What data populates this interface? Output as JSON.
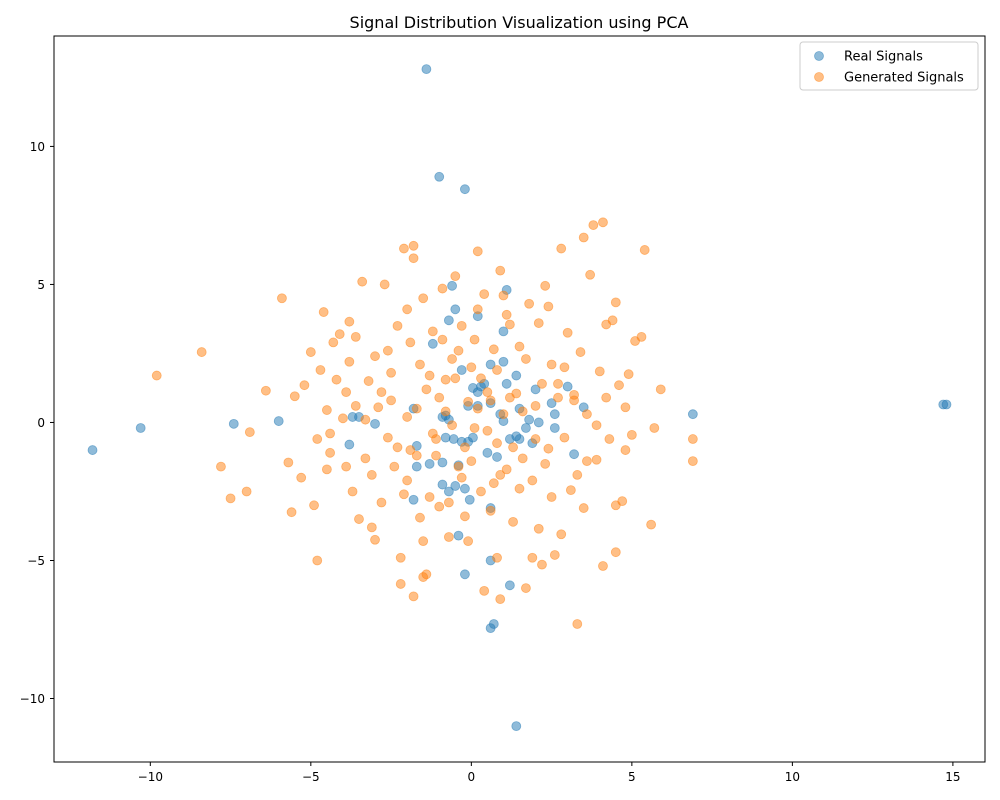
{
  "chart_data": {
    "type": "scatter",
    "title": "Signal Distribution Visualization using PCA",
    "xlabel": "",
    "ylabel": "",
    "xlim": [
      -13,
      16
    ],
    "ylim": [
      -12.3,
      14
    ],
    "xticks": [
      -10,
      -5,
      0,
      5,
      10,
      15
    ],
    "yticks": [
      -10,
      -5,
      0,
      5,
      10
    ],
    "grid": false,
    "legend_position": "top-right",
    "colors": {
      "real": "#1f77b4",
      "generated": "#ff7f0e"
    },
    "series": [
      {
        "name": "Real Signals",
        "color": "#1f77b4",
        "points": [
          [
            -1.4,
            12.8
          ],
          [
            -1.0,
            8.9
          ],
          [
            -0.2,
            8.45
          ],
          [
            -11.8,
            -1.0
          ],
          [
            -10.3,
            -0.2
          ],
          [
            -7.4,
            -0.05
          ],
          [
            -6.0,
            0.05
          ],
          [
            14.7,
            0.65
          ],
          [
            14.8,
            0.65
          ],
          [
            6.9,
            0.3
          ],
          [
            1.4,
            -11.0
          ],
          [
            0.7,
            -7.3
          ],
          [
            0.6,
            -7.45
          ],
          [
            1.2,
            -5.9
          ],
          [
            -0.2,
            -5.5
          ],
          [
            0.6,
            -5.0
          ],
          [
            -0.4,
            -4.1
          ],
          [
            -1.8,
            -2.8
          ],
          [
            -0.7,
            -2.5
          ],
          [
            -0.2,
            -2.4
          ],
          [
            -0.05,
            -2.8
          ],
          [
            0.6,
            -3.1
          ],
          [
            -0.5,
            -2.3
          ],
          [
            -0.9,
            -2.25
          ],
          [
            -3.5,
            0.2
          ],
          [
            -3.7,
            0.2
          ],
          [
            -3.0,
            -0.05
          ],
          [
            -3.8,
            -0.8
          ],
          [
            -1.7,
            -0.85
          ],
          [
            -1.3,
            -1.5
          ],
          [
            -0.9,
            -1.45
          ],
          [
            -0.4,
            -1.55
          ],
          [
            -0.55,
            -0.6
          ],
          [
            -0.3,
            -0.7
          ],
          [
            -0.8,
            -0.55
          ],
          [
            -1.7,
            -1.6
          ],
          [
            -0.7,
            0.1
          ],
          [
            -0.8,
            0.25
          ],
          [
            -0.9,
            0.2
          ],
          [
            -1.8,
            0.5
          ],
          [
            -1.2,
            2.85
          ],
          [
            -0.7,
            3.7
          ],
          [
            -0.5,
            4.1
          ],
          [
            -0.6,
            4.95
          ],
          [
            0.2,
            3.85
          ],
          [
            1.1,
            4.8
          ],
          [
            1.0,
            3.3
          ],
          [
            0.6,
            2.1
          ],
          [
            1.0,
            2.2
          ],
          [
            0.4,
            1.4
          ],
          [
            1.1,
            1.4
          ],
          [
            0.2,
            1.1
          ],
          [
            0.05,
            1.25
          ],
          [
            0.9,
            0.3
          ],
          [
            1.2,
            -0.6
          ],
          [
            1.5,
            -0.6
          ],
          [
            1.4,
            -0.5
          ],
          [
            2.1,
            0.0
          ],
          [
            1.7,
            -0.2
          ],
          [
            2.6,
            -0.2
          ],
          [
            2.6,
            0.3
          ],
          [
            1.9,
            -0.75
          ],
          [
            1.4,
            1.7
          ],
          [
            0.8,
            -1.25
          ],
          [
            0.5,
            -1.1
          ],
          [
            -0.1,
            -0.7
          ],
          [
            0.05,
            -0.55
          ],
          [
            0.3,
            1.3
          ],
          [
            1.8,
            0.1
          ],
          [
            2.0,
            1.2
          ],
          [
            2.5,
            0.7
          ],
          [
            3.0,
            1.3
          ],
          [
            3.2,
            -1.15
          ],
          [
            3.5,
            0.55
          ],
          [
            -0.3,
            1.9
          ],
          [
            -0.1,
            0.6
          ],
          [
            0.2,
            0.6
          ],
          [
            1.5,
            0.5
          ],
          [
            1.0,
            0.05
          ],
          [
            0.6,
            0.7
          ]
        ]
      },
      {
        "name": "Generated Signals",
        "color": "#ff7f0e",
        "points": [
          [
            -9.8,
            1.7
          ],
          [
            -8.4,
            2.55
          ],
          [
            -7.8,
            -1.6
          ],
          [
            -7.5,
            -2.75
          ],
          [
            -7.0,
            -2.5
          ],
          [
            -6.9,
            -0.35
          ],
          [
            -6.4,
            1.15
          ],
          [
            -5.9,
            4.5
          ],
          [
            -5.7,
            -1.45
          ],
          [
            -5.6,
            -3.25
          ],
          [
            -5.5,
            0.95
          ],
          [
            -5.3,
            -2.0
          ],
          [
            -5.2,
            1.35
          ],
          [
            -5.0,
            2.55
          ],
          [
            -4.9,
            -3.0
          ],
          [
            -4.8,
            -0.6
          ],
          [
            -4.8,
            -5.0
          ],
          [
            -4.6,
            4.0
          ],
          [
            -4.5,
            -1.7
          ],
          [
            -4.5,
            0.45
          ],
          [
            -4.4,
            -1.1
          ],
          [
            -4.3,
            2.9
          ],
          [
            -4.2,
            1.55
          ],
          [
            -4.1,
            3.2
          ],
          [
            -4.0,
            0.15
          ],
          [
            -3.9,
            -1.6
          ],
          [
            -3.8,
            2.2
          ],
          [
            -3.8,
            3.65
          ],
          [
            -3.7,
            -2.5
          ],
          [
            -3.6,
            0.6
          ],
          [
            -3.5,
            -3.5
          ],
          [
            -3.4,
            5.1
          ],
          [
            -3.3,
            -1.3
          ],
          [
            -3.2,
            1.5
          ],
          [
            -3.1,
            -3.8
          ],
          [
            -3.0,
            2.4
          ],
          [
            -3.0,
            -4.25
          ],
          [
            -2.9,
            0.55
          ],
          [
            -2.8,
            -2.9
          ],
          [
            -2.7,
            5.0
          ],
          [
            -2.6,
            -0.55
          ],
          [
            -2.5,
            1.8
          ],
          [
            -2.4,
            -1.6
          ],
          [
            -2.3,
            3.5
          ],
          [
            -2.2,
            -4.9
          ],
          [
            -2.1,
            6.3
          ],
          [
            -2.0,
            0.2
          ],
          [
            -2.0,
            -2.1
          ],
          [
            -1.9,
            2.9
          ],
          [
            -1.8,
            6.4
          ],
          [
            -1.8,
            5.95
          ],
          [
            -1.7,
            -1.2
          ],
          [
            -1.6,
            -3.45
          ],
          [
            -1.5,
            4.5
          ],
          [
            -1.5,
            -5.6
          ],
          [
            -1.4,
            1.2
          ],
          [
            -1.3,
            -2.7
          ],
          [
            -1.2,
            3.3
          ],
          [
            -1.1,
            -0.6
          ],
          [
            -1.0,
            -3.05
          ],
          [
            -0.9,
            4.85
          ],
          [
            -0.8,
            1.55
          ],
          [
            -0.7,
            -4.15
          ],
          [
            -0.6,
            2.3
          ],
          [
            -0.5,
            5.3
          ],
          [
            -0.4,
            -1.6
          ],
          [
            -0.3,
            3.5
          ],
          [
            -0.2,
            -3.4
          ],
          [
            -0.1,
            0.75
          ],
          [
            0.0,
            2.0
          ],
          [
            0.1,
            -0.2
          ],
          [
            0.2,
            6.2
          ],
          [
            0.3,
            -2.5
          ],
          [
            0.4,
            4.65
          ],
          [
            0.5,
            1.1
          ],
          [
            0.6,
            -3.2
          ],
          [
            0.7,
            2.65
          ],
          [
            0.8,
            -0.75
          ],
          [
            0.9,
            5.5
          ],
          [
            1.0,
            0.3
          ],
          [
            1.1,
            -1.7
          ],
          [
            1.2,
            3.55
          ],
          [
            1.3,
            -3.6
          ],
          [
            1.4,
            1.05
          ],
          [
            1.5,
            2.75
          ],
          [
            1.6,
            -1.3
          ],
          [
            1.7,
            -6.0
          ],
          [
            1.8,
            4.3
          ],
          [
            1.9,
            -2.1
          ],
          [
            2.0,
            0.6
          ],
          [
            2.1,
            3.6
          ],
          [
            2.2,
            -5.15
          ],
          [
            2.3,
            4.95
          ],
          [
            2.4,
            -0.95
          ],
          [
            2.5,
            2.1
          ],
          [
            2.6,
            -4.8
          ],
          [
            2.7,
            1.4
          ],
          [
            2.8,
            6.3
          ],
          [
            2.9,
            -0.55
          ],
          [
            3.0,
            3.25
          ],
          [
            3.1,
            -2.45
          ],
          [
            3.2,
            0.8
          ],
          [
            3.3,
            -7.3
          ],
          [
            3.4,
            2.55
          ],
          [
            3.5,
            6.7
          ],
          [
            3.6,
            -1.4
          ],
          [
            3.7,
            5.35
          ],
          [
            3.8,
            7.15
          ],
          [
            3.9,
            -1.35
          ],
          [
            4.0,
            1.85
          ],
          [
            4.1,
            7.25
          ],
          [
            4.1,
            -5.2
          ],
          [
            4.2,
            3.55
          ],
          [
            4.3,
            -0.6
          ],
          [
            4.4,
            3.7
          ],
          [
            4.5,
            -4.7
          ],
          [
            4.5,
            4.35
          ],
          [
            4.6,
            1.35
          ],
          [
            4.7,
            -2.85
          ],
          [
            4.8,
            0.55
          ],
          [
            4.9,
            1.75
          ],
          [
            5.0,
            -0.45
          ],
          [
            5.1,
            2.95
          ],
          [
            5.3,
            3.1
          ],
          [
            5.4,
            6.25
          ],
          [
            5.6,
            -3.7
          ],
          [
            5.7,
            -0.2
          ],
          [
            5.9,
            1.2
          ],
          [
            6.9,
            -0.6
          ],
          [
            6.9,
            -1.4
          ],
          [
            -2.2,
            -5.85
          ],
          [
            -1.8,
            -6.3
          ],
          [
            -1.4,
            -5.5
          ],
          [
            0.4,
            -6.1
          ],
          [
            0.9,
            -6.4
          ],
          [
            0.8,
            -4.9
          ],
          [
            1.9,
            -4.9
          ],
          [
            2.1,
            -3.85
          ],
          [
            2.8,
            -4.05
          ],
          [
            4.5,
            -3.0
          ],
          [
            -1.0,
            0.9
          ],
          [
            -0.8,
            0.4
          ],
          [
            -1.2,
            -0.4
          ],
          [
            0.2,
            0.5
          ],
          [
            0.5,
            -0.3
          ],
          [
            -0.5,
            1.6
          ],
          [
            0.8,
            1.9
          ],
          [
            1.2,
            0.9
          ],
          [
            -1.6,
            2.1
          ],
          [
            -2.5,
            0.8
          ],
          [
            1.5,
            -2.4
          ],
          [
            2.3,
            -1.5
          ],
          [
            2.7,
            0.9
          ],
          [
            -0.3,
            -2.0
          ],
          [
            -1.9,
            -1.0
          ],
          [
            0.1,
            3.0
          ],
          [
            -2.8,
            1.1
          ],
          [
            3.2,
            1.0
          ],
          [
            1.7,
            2.3
          ],
          [
            -0.7,
            -2.9
          ],
          [
            0.6,
            0.8
          ],
          [
            -0.2,
            -0.9
          ],
          [
            -1.3,
            1.7
          ],
          [
            2.0,
            -0.6
          ],
          [
            0.9,
            -1.9
          ],
          [
            -3.3,
            0.1
          ],
          [
            3.6,
            0.3
          ],
          [
            -2.1,
            -2.6
          ],
          [
            1.1,
            3.9
          ],
          [
            -0.9,
            3.0
          ],
          [
            2.5,
            -2.7
          ],
          [
            -3.9,
            1.1
          ],
          [
            3.9,
            -0.1
          ],
          [
            -2.6,
            2.6
          ],
          [
            2.9,
            2.0
          ],
          [
            -1.1,
            -1.2
          ],
          [
            0.3,
            1.6
          ],
          [
            1.3,
            -0.9
          ],
          [
            -0.6,
            -0.1
          ],
          [
            0.7,
            -2.2
          ],
          [
            -1.7,
            0.5
          ],
          [
            2.2,
            1.4
          ],
          [
            -2.3,
            -0.9
          ],
          [
            1.6,
            0.4
          ],
          [
            -0.4,
            2.6
          ],
          [
            0.0,
            -1.4
          ],
          [
            -3.1,
            -1.9
          ],
          [
            3.3,
            -1.9
          ],
          [
            -4.4,
            -0.4
          ],
          [
            4.2,
            0.9
          ],
          [
            -3.6,
            3.1
          ],
          [
            3.5,
            -3.1
          ],
          [
            -1.5,
            -4.3
          ],
          [
            1.0,
            4.6
          ],
          [
            -4.7,
            1.9
          ],
          [
            4.8,
            -1.0
          ],
          [
            -2.0,
            4.1
          ],
          [
            2.4,
            4.2
          ],
          [
            -0.1,
            -4.3
          ],
          [
            0.2,
            4.1
          ]
        ]
      }
    ]
  }
}
